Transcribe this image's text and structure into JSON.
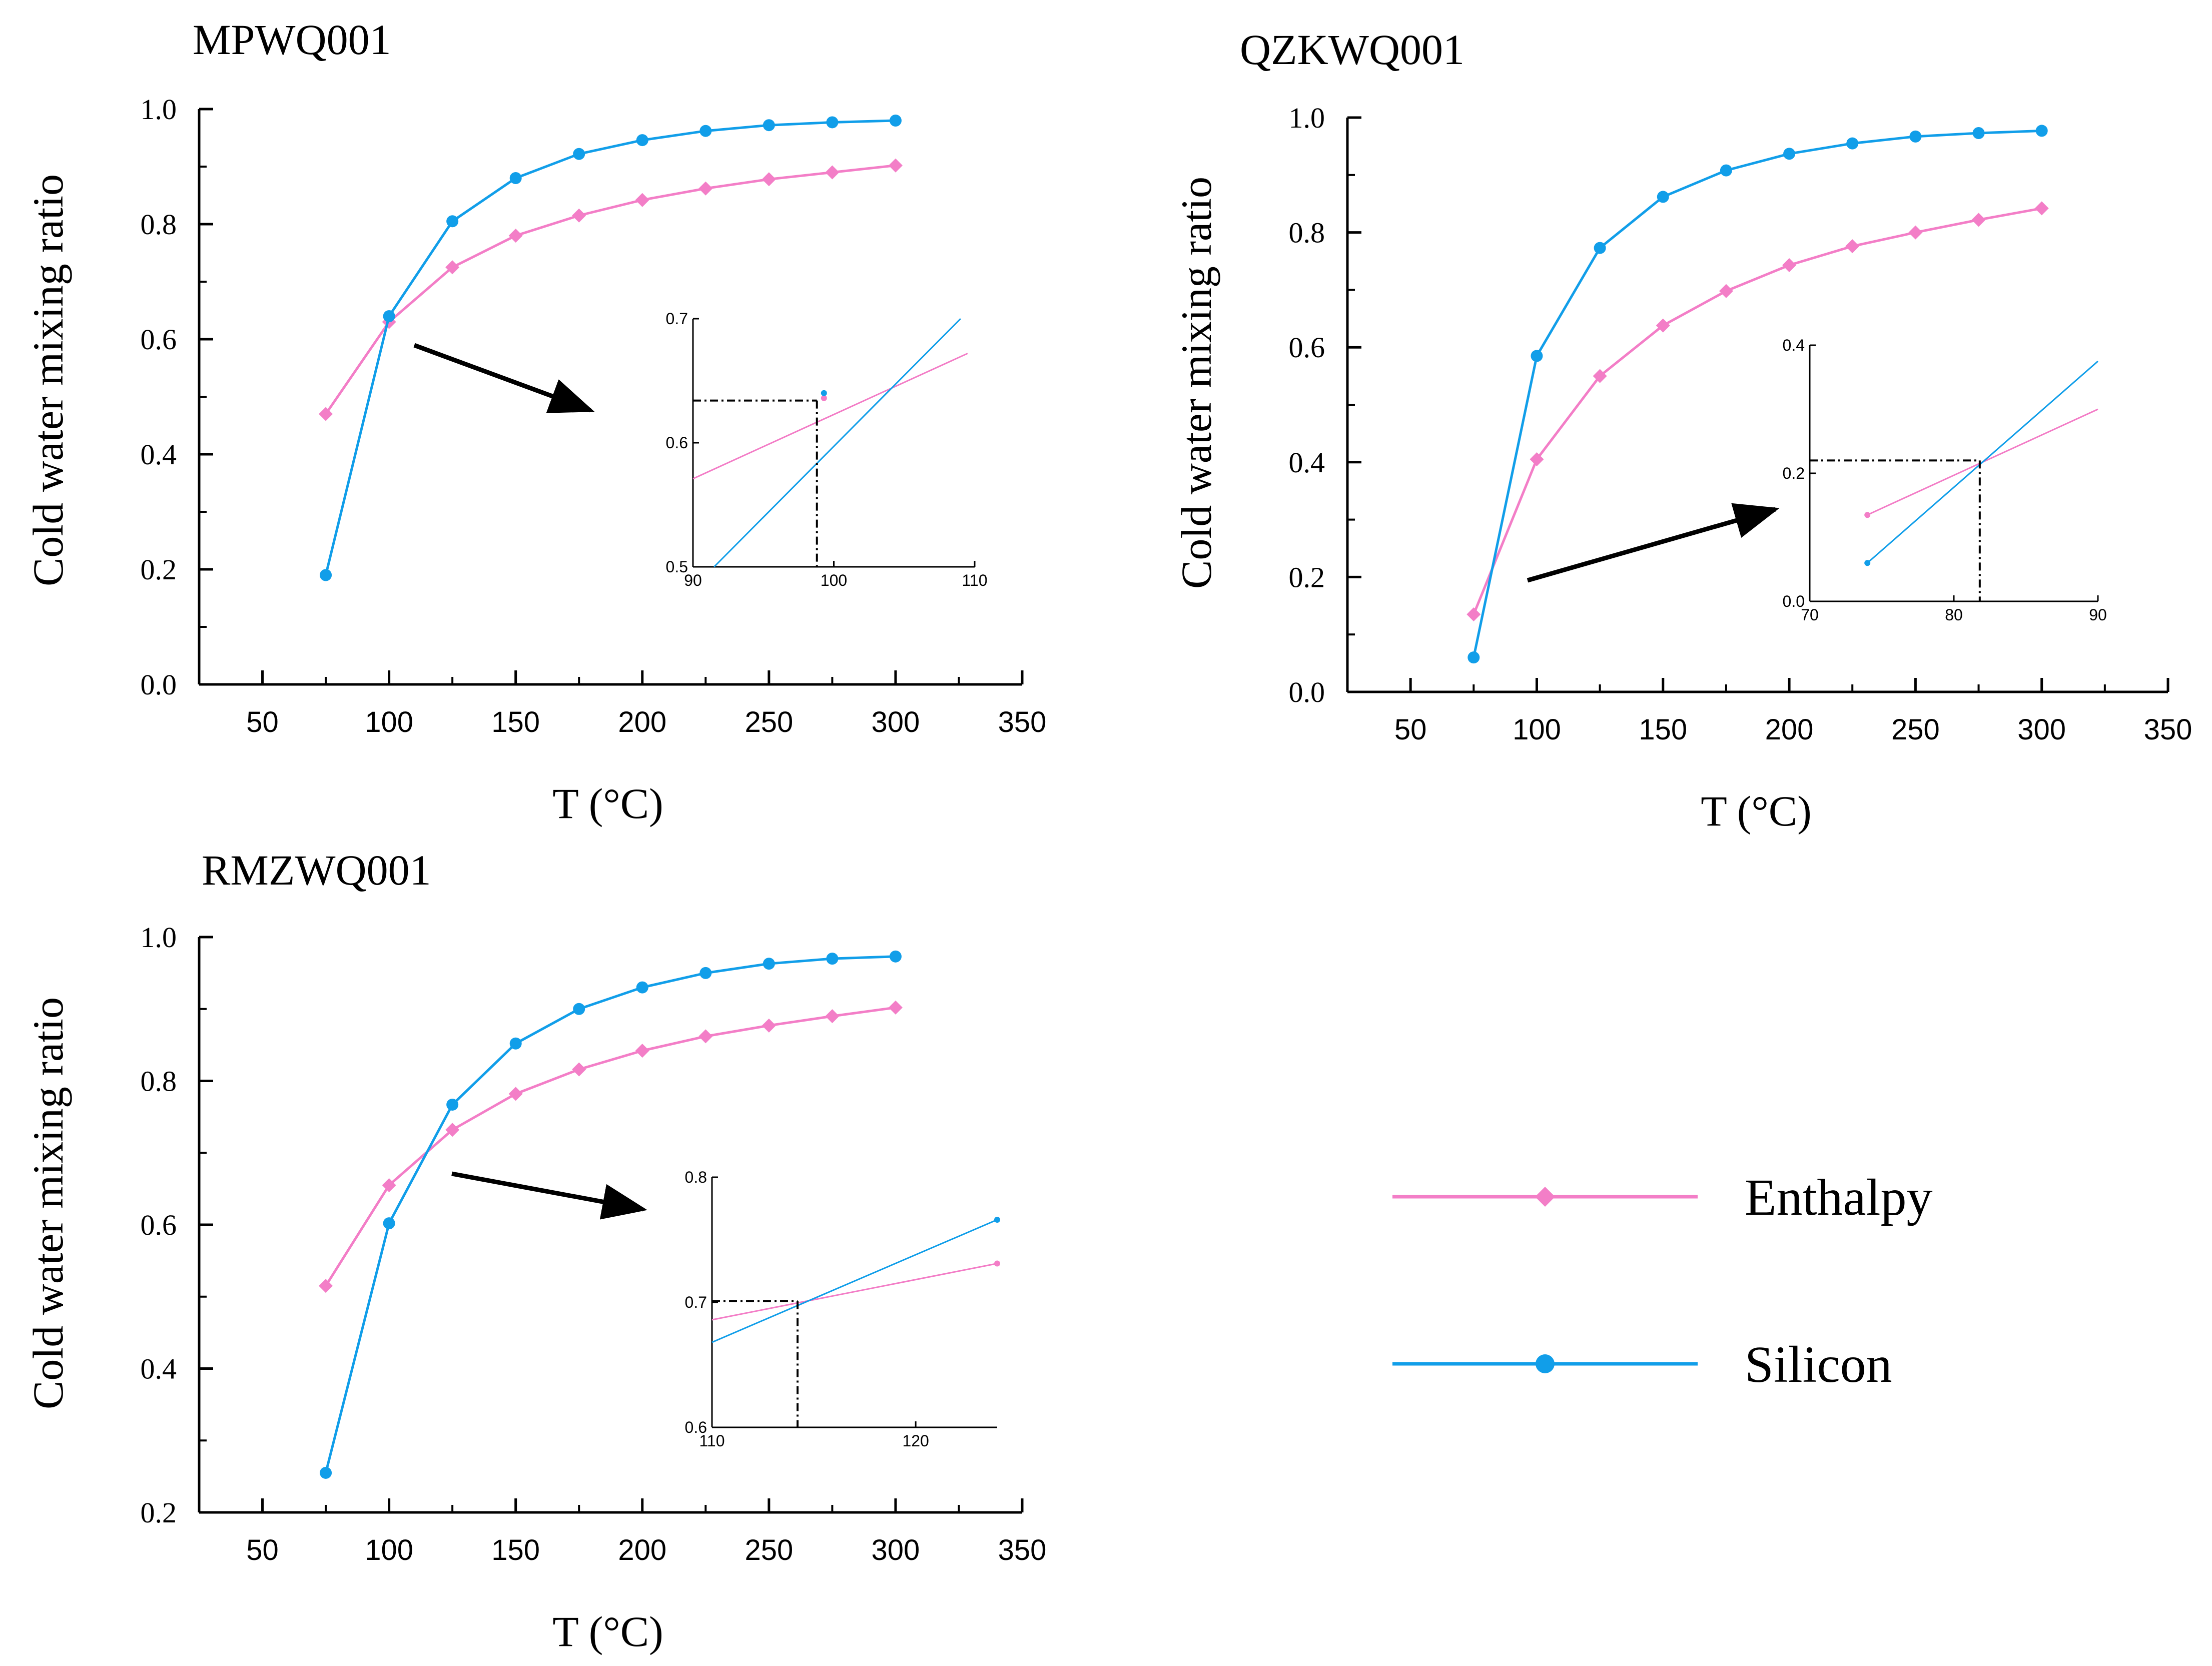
{
  "colors": {
    "enthalpy": "#f37ec7",
    "silicon": "#119ee9",
    "axis": "#000000",
    "arrow": "#000000"
  },
  "legend": [
    {
      "name": "Enthalpy",
      "marker": "diamond",
      "color": "#f37ec7"
    },
    {
      "name": "Silicon",
      "marker": "circle",
      "color": "#119ee9"
    }
  ],
  "chart_data": [
    {
      "type": "line",
      "title": "MPWQ001",
      "xlabel": "T (°C)",
      "ylabel": "Cold water mixing ratio",
      "xlim": [
        25,
        350
      ],
      "ylim": [
        0.0,
        1.0
      ],
      "xticks": [
        50,
        100,
        150,
        200,
        250,
        300,
        350
      ],
      "yticks": [
        "0.0",
        "0.2",
        "0.4",
        "0.6",
        "0.8",
        "1.0"
      ],
      "x": [
        75,
        100,
        125,
        150,
        175,
        200,
        225,
        250,
        275,
        300
      ],
      "series": [
        {
          "name": "Enthalpy",
          "values": [
            0.47,
            0.63,
            0.725,
            0.78,
            0.815,
            0.842,
            0.862,
            0.878,
            0.89,
            0.902
          ]
        },
        {
          "name": "Silicon",
          "values": [
            0.19,
            0.64,
            0.805,
            0.88,
            0.922,
            0.946,
            0.962,
            0.972,
            0.977,
            0.98
          ]
        }
      ],
      "inset": {
        "xlim": [
          90,
          110
        ],
        "ylim": [
          0.5,
          0.7
        ],
        "xticks": [
          "90",
          "100",
          "110"
        ],
        "yticks": [
          "0.5",
          "0.6",
          "0.7"
        ],
        "intersection": {
          "x": 98.8,
          "y": 0.634
        },
        "lines": [
          {
            "name": "Enthalpy",
            "from": [
              90,
              0.571
            ],
            "to": [
              109.5,
              0.672
            ]
          },
          {
            "name": "Silicon",
            "from": [
              91.5,
              0.5
            ],
            "to": [
              109,
              0.7
            ]
          }
        ],
        "points": [
          {
            "name": "Enthalpy",
            "x": 99.3,
            "y": 0.636
          },
          {
            "name": "Silicon",
            "x": 99.3,
            "y": 0.64
          }
        ]
      }
    },
    {
      "type": "line",
      "title": "QZKWQ001",
      "xlabel": "T (°C)",
      "ylabel": "Cold water mixing ratio",
      "xlim": [
        25,
        350
      ],
      "ylim": [
        0.0,
        1.0
      ],
      "xticks": [
        50,
        100,
        150,
        200,
        250,
        300,
        350
      ],
      "yticks": [
        "0.0",
        "0.2",
        "0.4",
        "0.6",
        "0.8",
        "1.0"
      ],
      "x": [
        75,
        100,
        125,
        150,
        175,
        200,
        225,
        250,
        275,
        300
      ],
      "series": [
        {
          "name": "Enthalpy",
          "values": [
            0.135,
            0.405,
            0.55,
            0.638,
            0.698,
            0.743,
            0.776,
            0.8,
            0.822,
            0.842
          ]
        },
        {
          "name": "Silicon",
          "values": [
            0.06,
            0.585,
            0.773,
            0.862,
            0.908,
            0.937,
            0.955,
            0.967,
            0.973,
            0.977
          ]
        }
      ],
      "inset": {
        "xlim": [
          70,
          90
        ],
        "ylim": [
          0.0,
          0.4
        ],
        "xticks": [
          "70",
          "80",
          "90"
        ],
        "yticks": [
          "0.0",
          "0.2",
          "0.4"
        ],
        "intersection": {
          "x": 81.8,
          "y": 0.22
        },
        "lines": [
          {
            "name": "Enthalpy",
            "from": [
              74,
              0.135
            ],
            "to": [
              90,
              0.3
            ]
          },
          {
            "name": "Silicon",
            "from": [
              74,
              0.06
            ],
            "to": [
              90,
              0.375
            ]
          }
        ],
        "points": [
          {
            "name": "Enthalpy",
            "x": 74,
            "y": 0.135
          },
          {
            "name": "Silicon",
            "x": 74,
            "y": 0.06
          }
        ]
      }
    },
    {
      "type": "line",
      "title": "RMZWQ001",
      "xlabel": "T (°C)",
      "ylabel": "Cold water mixing ratio",
      "xlim": [
        25,
        350
      ],
      "ylim": [
        0.2,
        1.0
      ],
      "xticks": [
        50,
        100,
        150,
        200,
        250,
        300,
        350
      ],
      "yticks": [
        "0.2",
        "0.4",
        "0.6",
        "0.8",
        "1.0"
      ],
      "x": [
        75,
        100,
        125,
        150,
        175,
        200,
        225,
        250,
        275,
        300
      ],
      "series": [
        {
          "name": "Enthalpy",
          "values": [
            0.515,
            0.655,
            0.732,
            0.782,
            0.816,
            0.842,
            0.862,
            0.877,
            0.89,
            0.902
          ]
        },
        {
          "name": "Silicon",
          "values": [
            0.255,
            0.602,
            0.767,
            0.852,
            0.9,
            0.93,
            0.95,
            0.963,
            0.97,
            0.973
          ]
        }
      ],
      "inset": {
        "xlim": [
          110,
          124
        ],
        "ylim": [
          0.6,
          0.8
        ],
        "xticks": [
          "110",
          "120"
        ],
        "yticks": [
          "0.6",
          "0.7",
          "0.8"
        ],
        "intersection": {
          "x": 114.2,
          "y": 0.701
        },
        "lines": [
          {
            "name": "Enthalpy",
            "from": [
              110,
              0.686
            ],
            "to": [
              124,
              0.731
            ]
          },
          {
            "name": "Silicon",
            "from": [
              110,
              0.668
            ],
            "to": [
              124,
              0.766
            ]
          }
        ],
        "points": [
          {
            "name": "Enthalpy",
            "x": 124,
            "y": 0.731
          },
          {
            "name": "Silicon",
            "x": 124,
            "y": 0.766
          }
        ]
      }
    }
  ]
}
